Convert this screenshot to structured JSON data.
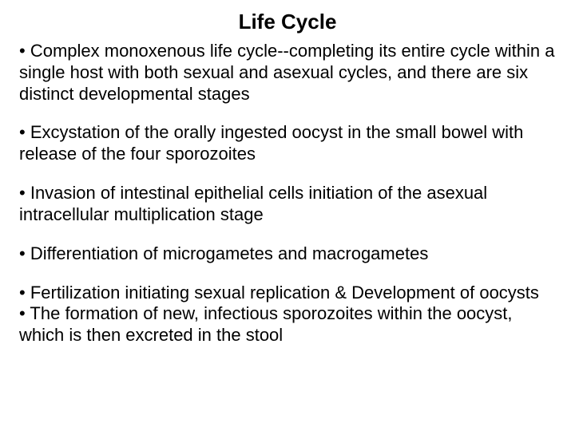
{
  "title": "Life Cycle",
  "bullets": [
    "Complex monoxenous life cycle--completing its entire cycle within a single host with both sexual and asexual cycles, and there are six distinct developmental stages",
    "Excystation of the orally ingested oocyst in the small bowel with release of the four sporozoites",
    "Invasion of intestinal epithelial cells initiation of the asexual intracellular multiplication stage",
    "Differentiation of microgametes and macrogametes",
    "Fertilization initiating sexual replication & Development of oocysts",
    "The formation of new, infectious sporozoites within the oocyst, which is then excreted in the stool"
  ],
  "style": {
    "background_color": "#ffffff",
    "text_color": "#000000",
    "title_fontsize": 26,
    "title_weight": "bold",
    "body_fontsize": 22,
    "line_height": 1.22,
    "hpad": 24
  }
}
